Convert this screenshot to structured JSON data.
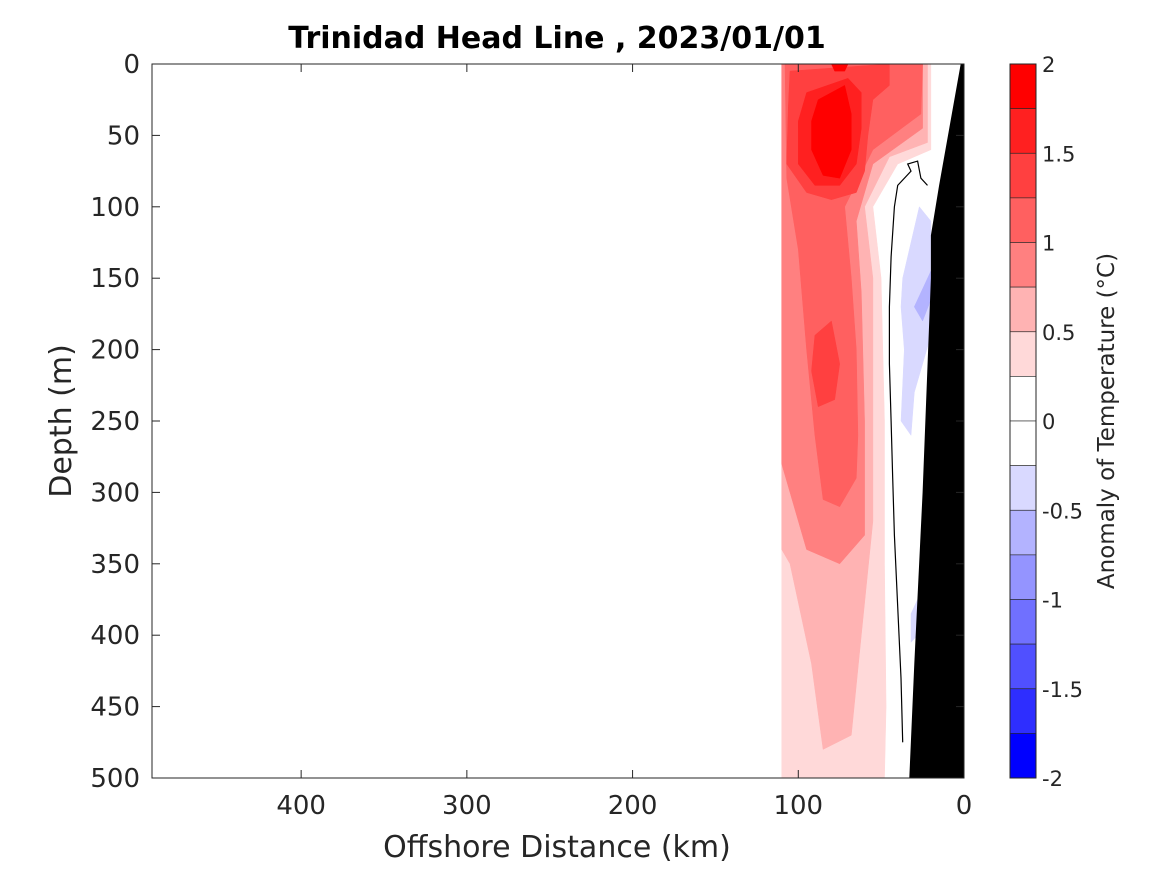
{
  "chart_data": {
    "type": "contour",
    "title": "Trinidad Head Line , 2023/01/01",
    "xlabel": "Offshore Distance (km)",
    "ylabel": "Depth (m)",
    "xlim": [
      490,
      0
    ],
    "ylim": [
      0,
      500
    ],
    "x_reversed": true,
    "y_reversed": true,
    "xticks": [
      {
        "value": 400,
        "label": "400"
      },
      {
        "value": 300,
        "label": "300"
      },
      {
        "value": 200,
        "label": "200"
      },
      {
        "value": 100,
        "label": "100"
      },
      {
        "value": 0,
        "label": "0"
      }
    ],
    "yticks": [
      {
        "value": 0,
        "label": "0"
      },
      {
        "value": 50,
        "label": "50"
      },
      {
        "value": 100,
        "label": "100"
      },
      {
        "value": 150,
        "label": "150"
      },
      {
        "value": 200,
        "label": "200"
      },
      {
        "value": 250,
        "label": "250"
      },
      {
        "value": 300,
        "label": "300"
      },
      {
        "value": 350,
        "label": "350"
      },
      {
        "value": 400,
        "label": "400"
      },
      {
        "value": 450,
        "label": "450"
      },
      {
        "value": 500,
        "label": "500"
      }
    ],
    "colorbar": {
      "label": "Anomaly of Temperature (°C)",
      "range": [
        -2,
        2
      ],
      "step": 0.25,
      "ticks": [
        {
          "value": 2,
          "label": "2"
        },
        {
          "value": 1.5,
          "label": "1.5"
        },
        {
          "value": 1,
          "label": "1"
        },
        {
          "value": 0.5,
          "label": "0.5"
        },
        {
          "value": 0,
          "label": "0"
        },
        {
          "value": -0.5,
          "label": "-0.5"
        },
        {
          "value": -1,
          "label": "-1"
        },
        {
          "value": -1.5,
          "label": "-1.5"
        },
        {
          "value": -2,
          "label": "-2"
        }
      ],
      "bins": [
        {
          "from": 1.75,
          "to": 2.0,
          "color": "#ff0000"
        },
        {
          "from": 1.5,
          "to": 1.75,
          "color": "#ff2020"
        },
        {
          "from": 1.25,
          "to": 1.5,
          "color": "#ff4040"
        },
        {
          "from": 1.0,
          "to": 1.25,
          "color": "#ff6060"
        },
        {
          "from": 0.75,
          "to": 1.0,
          "color": "#ff8080"
        },
        {
          "from": 0.5,
          "to": 0.75,
          "color": "#ffb3b3"
        },
        {
          "from": 0.25,
          "to": 0.5,
          "color": "#ffd9d9"
        },
        {
          "from": 0.0,
          "to": 0.25,
          "color": "#ffffff"
        },
        {
          "from": -0.25,
          "to": 0.0,
          "color": "#ffffff"
        },
        {
          "from": -0.5,
          "to": -0.25,
          "color": "#d9d9ff"
        },
        {
          "from": -0.75,
          "to": -0.5,
          "color": "#b3b3ff"
        },
        {
          "from": -1.0,
          "to": -0.75,
          "color": "#9494ff"
        },
        {
          "from": -1.25,
          "to": -1.0,
          "color": "#7070ff"
        },
        {
          "from": -1.5,
          "to": -1.25,
          "color": "#5050ff"
        },
        {
          "from": -1.75,
          "to": -1.5,
          "color": "#2e2eff"
        },
        {
          "from": -2.0,
          "to": -1.75,
          "color": "#0000ff"
        }
      ]
    },
    "data_extent_km": [
      110,
      0
    ],
    "contour_regions": [
      {
        "name": "anomaly-0.25-0.5",
        "color": "#ffd9d9",
        "polygon": [
          [
            110,
            0
          ],
          [
            20,
            0
          ],
          [
            20,
            60
          ],
          [
            40,
            70
          ],
          [
            55,
            100
          ],
          [
            50,
            150
          ],
          [
            48,
            250
          ],
          [
            48,
            350
          ],
          [
            47,
            450
          ],
          [
            48,
            500
          ],
          [
            110,
            500
          ]
        ]
      },
      {
        "name": "anomaly-0.5-0.75",
        "color": "#ffb3b3",
        "polygon": [
          [
            110,
            0
          ],
          [
            22,
            0
          ],
          [
            22,
            55
          ],
          [
            45,
            65
          ],
          [
            60,
            100
          ],
          [
            55,
            150
          ],
          [
            55,
            250
          ],
          [
            55,
            320
          ],
          [
            62,
            400
          ],
          [
            68,
            470
          ],
          [
            85,
            480
          ],
          [
            92,
            420
          ],
          [
            105,
            350
          ],
          [
            110,
            340
          ]
        ]
      },
      {
        "name": "anomaly-0.75-1.0",
        "color": "#ff8080",
        "polygon": [
          [
            110,
            0
          ],
          [
            25,
            0
          ],
          [
            25,
            45
          ],
          [
            55,
            70
          ],
          [
            65,
            110
          ],
          [
            62,
            160
          ],
          [
            60,
            250
          ],
          [
            60,
            330
          ],
          [
            75,
            350
          ],
          [
            95,
            340
          ],
          [
            105,
            300
          ],
          [
            110,
            280
          ]
        ]
      },
      {
        "name": "anomaly-1.0-1.25",
        "color": "#ff6060",
        "polygon": [
          [
            108,
            0
          ],
          [
            25,
            0
          ],
          [
            26,
            35
          ],
          [
            55,
            60
          ],
          [
            72,
            100
          ],
          [
            68,
            150
          ],
          [
            65,
            200
          ],
          [
            64,
            260
          ],
          [
            65,
            290
          ],
          [
            75,
            310
          ],
          [
            85,
            305
          ],
          [
            90,
            260
          ],
          [
            95,
            200
          ],
          [
            100,
            130
          ],
          [
            107,
            80
          ]
        ]
      },
      {
        "name": "anomaly-1.25-1.5",
        "color": "#ff4040",
        "polygon": [
          [
            105,
            5
          ],
          [
            45,
            0
          ],
          [
            45,
            15
          ],
          [
            55,
            25
          ],
          [
            58,
            50
          ],
          [
            60,
            75
          ],
          [
            65,
            90
          ],
          [
            80,
            95
          ],
          [
            95,
            90
          ],
          [
            107,
            70
          ],
          [
            106,
            30
          ]
        ]
      },
      {
        "name": "anomaly-1.25-1.5-mid",
        "color": "#ff4040",
        "polygon": [
          [
            90,
            190
          ],
          [
            80,
            180
          ],
          [
            75,
            210
          ],
          [
            78,
            235
          ],
          [
            88,
            240
          ],
          [
            92,
            215
          ]
        ]
      },
      {
        "name": "anomaly-1.5-1.75",
        "color": "#ff2020",
        "polygon": [
          [
            95,
            20
          ],
          [
            70,
            10
          ],
          [
            62,
            20
          ],
          [
            62,
            45
          ],
          [
            65,
            70
          ],
          [
            75,
            85
          ],
          [
            90,
            85
          ],
          [
            100,
            70
          ],
          [
            100,
            40
          ]
        ]
      },
      {
        "name": "anomaly-1.75-2.0",
        "color": "#ff0000",
        "polygon": [
          [
            88,
            25
          ],
          [
            72,
            15
          ],
          [
            68,
            35
          ],
          [
            68,
            60
          ],
          [
            75,
            80
          ],
          [
            85,
            78
          ],
          [
            92,
            60
          ],
          [
            92,
            40
          ]
        ]
      },
      {
        "name": "anomaly-1.75-2.0-top",
        "color": "#ff0000",
        "polygon": [
          [
            80,
            0
          ],
          [
            70,
            0
          ],
          [
            72,
            5
          ],
          [
            78,
            5
          ]
        ]
      },
      {
        "name": "anomaly-neg0.5-neg0.25",
        "color": "#d9d9ff",
        "polygon": [
          [
            37,
            150
          ],
          [
            27,
            100
          ],
          [
            20,
            110
          ],
          [
            20,
            190
          ],
          [
            30,
            230
          ],
          [
            32,
            260
          ],
          [
            38,
            250
          ],
          [
            36,
            200
          ],
          [
            38,
            170
          ]
        ]
      },
      {
        "name": "anomaly-neg0.75-neg0.5",
        "color": "#b3b3ff",
        "polygon": [
          [
            30,
            170
          ],
          [
            20,
            145
          ],
          [
            20,
            165
          ],
          [
            25,
            180
          ]
        ]
      },
      {
        "name": "anomaly-neg0.5-neg0.25-deep",
        "color": "#d9d9ff",
        "polygon": [
          [
            32,
            385
          ],
          [
            28,
            375
          ],
          [
            28,
            400
          ],
          [
            32,
            405
          ]
        ]
      }
    ],
    "zero_contour": [
      [
        37,
        475
      ],
      [
        38,
        430
      ],
      [
        40,
        380
      ],
      [
        42,
        330
      ],
      [
        43,
        290
      ],
      [
        44,
        250
      ],
      [
        45,
        210
      ],
      [
        45,
        170
      ],
      [
        44,
        135
      ],
      [
        42,
        100
      ],
      [
        40,
        85
      ],
      [
        32,
        75
      ],
      [
        34,
        70
      ],
      [
        28,
        68
      ],
      [
        26,
        80
      ],
      [
        22,
        85
      ]
    ],
    "bathymetry": [
      [
        0,
        0
      ],
      [
        2,
        0
      ],
      [
        15,
        85
      ],
      [
        20,
        120
      ],
      [
        20,
        150
      ],
      [
        25,
        300
      ],
      [
        30,
        420
      ],
      [
        33,
        500
      ],
      [
        0,
        500
      ]
    ]
  }
}
